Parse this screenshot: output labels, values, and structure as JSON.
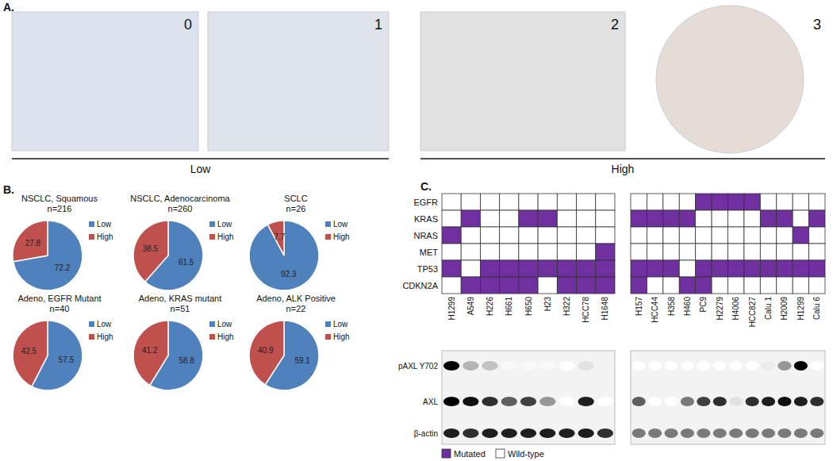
{
  "panel_labels": [
    "A.",
    "B.",
    "C."
  ],
  "panel_a": {
    "scores": [
      "0",
      "1",
      "2",
      "3"
    ],
    "groups": [
      {
        "label": "Low"
      },
      {
        "label": "High"
      }
    ]
  },
  "chart_data": [
    {
      "type": "pie",
      "title": "NSCLC, Squamous",
      "subtitle": "n=216",
      "categories": [
        "Low",
        "High"
      ],
      "values": [
        72.2,
        27.8
      ],
      "colors": [
        "#4F81BD",
        "#C0504D"
      ],
      "data_labels": true,
      "legend": "right"
    },
    {
      "type": "pie",
      "title": "NSCLC, Adenocarcinoma",
      "subtitle": "n=260",
      "categories": [
        "Low",
        "High"
      ],
      "values": [
        61.5,
        38.5
      ],
      "colors": [
        "#4F81BD",
        "#C0504D"
      ],
      "data_labels": true,
      "legend": "right"
    },
    {
      "type": "pie",
      "title": "SCLC",
      "subtitle": "n=26",
      "categories": [
        "Low",
        "High"
      ],
      "values": [
        92.3,
        7.7
      ],
      "colors": [
        "#4F81BD",
        "#C0504D"
      ],
      "data_labels": true,
      "legend": "right"
    },
    {
      "type": "pie",
      "title": "Adeno, EGFR Mutant",
      "subtitle": "n=40",
      "categories": [
        "Low",
        "High"
      ],
      "values": [
        57.5,
        42.5
      ],
      "colors": [
        "#4F81BD",
        "#C0504D"
      ],
      "data_labels": true,
      "legend": "right"
    },
    {
      "type": "pie",
      "title": "Adeno, KRAS mutant",
      "subtitle": "n=51",
      "categories": [
        "Low",
        "High"
      ],
      "values": [
        58.8,
        41.2
      ],
      "colors": [
        "#4F81BD",
        "#C0504D"
      ],
      "data_labels": true,
      "legend": "right"
    },
    {
      "type": "pie",
      "title": "Adeno, ALK Positive",
      "subtitle": "n=22",
      "categories": [
        "Low",
        "High"
      ],
      "values": [
        59.1,
        40.9
      ],
      "colors": [
        "#4F81BD",
        "#C0504D"
      ],
      "data_labels": true,
      "legend": "right"
    }
  ],
  "panel_c": {
    "genes": [
      "EGFR",
      "KRAS",
      "NRAS",
      "MET",
      "TP53",
      "CDKN2A"
    ],
    "blot_rows": [
      "pAXL Y702",
      "AXL",
      "β-actin"
    ],
    "colors": {
      "mutated": "#7030A0",
      "wild_type": "#FFFFFF"
    },
    "legend": {
      "mutated": "Mutated",
      "wild_type": "Wild-type"
    },
    "blots": [
      {
        "cell_lines": [
          "H1299",
          "A549",
          "H226",
          "H661",
          "H650",
          "H23",
          "H322",
          "HCC78",
          "H1648"
        ],
        "mutations": [
          [
            0,
            0,
            0,
            0,
            0,
            0,
            0,
            0,
            0
          ],
          [
            0,
            1,
            0,
            0,
            1,
            1,
            0,
            0,
            0
          ],
          [
            1,
            0,
            0,
            0,
            0,
            0,
            0,
            0,
            0
          ],
          [
            0,
            0,
            0,
            0,
            0,
            0,
            0,
            0,
            1
          ],
          [
            1,
            0,
            1,
            1,
            1,
            1,
            1,
            1,
            1
          ],
          [
            0,
            1,
            1,
            1,
            1,
            0,
            1,
            1,
            1
          ]
        ],
        "band_intensity": [
          [
            1.0,
            0.4,
            0.35,
            0.05,
            0.05,
            0.05,
            0.0,
            0.2,
            0.1
          ],
          [
            1.0,
            0.95,
            0.85,
            0.7,
            0.8,
            0.5,
            0.0,
            0.9,
            0.0
          ],
          [
            0.9,
            0.85,
            0.9,
            0.9,
            0.9,
            0.9,
            0.9,
            0.9,
            0.85
          ]
        ]
      },
      {
        "cell_lines": [
          "H157",
          "HCC44",
          "H358",
          "H460",
          "PC9",
          "H2279",
          "H4006",
          "HCC827",
          "Calu 1",
          "H2009",
          "H1299",
          "Calu 6"
        ],
        "mutations": [
          [
            0,
            0,
            0,
            0,
            1,
            1,
            1,
            1,
            0,
            0,
            0,
            0
          ],
          [
            1,
            1,
            1,
            1,
            0,
            0,
            0,
            0,
            1,
            1,
            0,
            1
          ],
          [
            0,
            0,
            0,
            0,
            0,
            0,
            0,
            0,
            0,
            0,
            1,
            0
          ],
          [
            0,
            0,
            0,
            0,
            0,
            0,
            0,
            0,
            0,
            0,
            0,
            0
          ],
          [
            1,
            1,
            1,
            0,
            1,
            1,
            1,
            1,
            1,
            1,
            1,
            1
          ],
          [
            1,
            0,
            0,
            1,
            1,
            0,
            0,
            0,
            0,
            0,
            0,
            0
          ]
        ],
        "band_intensity": [
          [
            0.0,
            0.0,
            0.0,
            0.0,
            0.0,
            0.0,
            0.0,
            0.0,
            0.15,
            0.5,
            1.0,
            0.0
          ],
          [
            0.7,
            0.0,
            0.0,
            0.6,
            0.8,
            0.85,
            0.2,
            0.85,
            0.9,
            0.95,
            0.9,
            0.85
          ],
          [
            0.6,
            0.6,
            0.6,
            0.6,
            0.6,
            0.6,
            0.6,
            0.6,
            0.6,
            0.6,
            0.6,
            0.6
          ]
        ]
      }
    ]
  }
}
